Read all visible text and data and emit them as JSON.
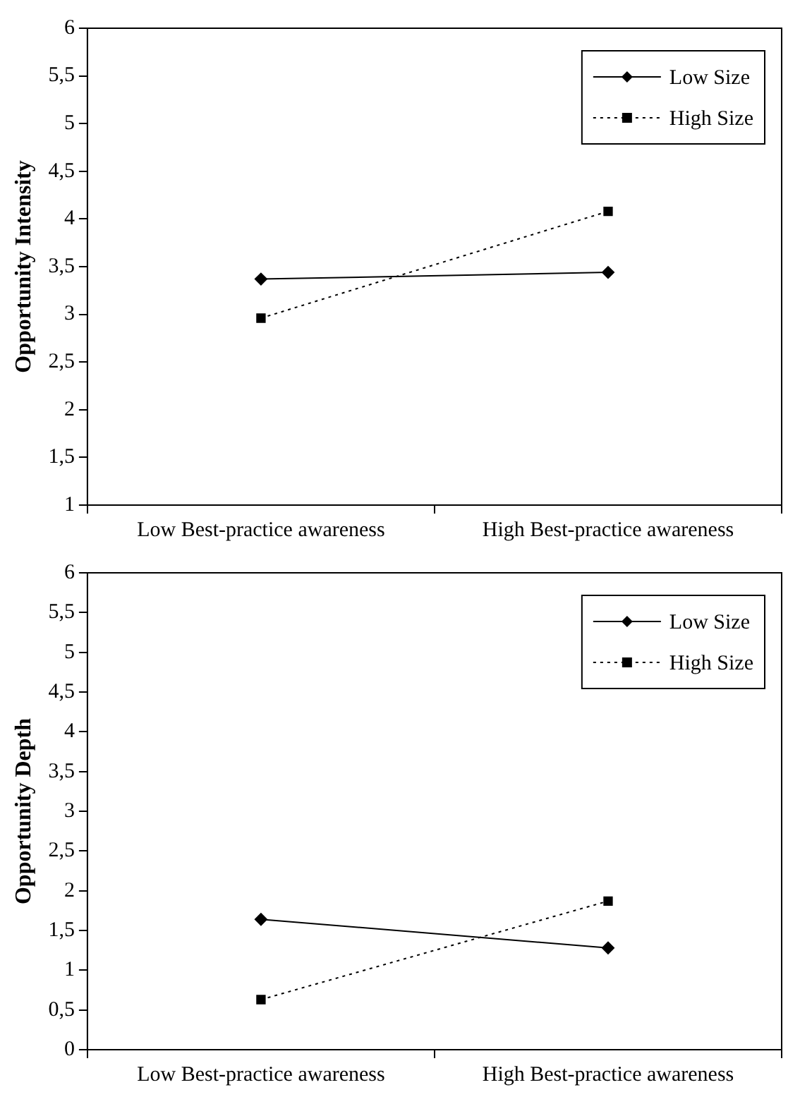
{
  "chart_data": [
    {
      "type": "line",
      "ylabel": "Opportunity Intensity",
      "categories": [
        "Low Best-practice awareness",
        "High Best-practice awareness"
      ],
      "series": [
        {
          "name": "Low Size",
          "color": "#000000",
          "values": [
            3.37,
            3.44
          ],
          "marker": "diamond",
          "line_style": "solid"
        },
        {
          "name": "High Size",
          "color": "#000000",
          "values": [
            2.96,
            4.08
          ],
          "marker": "square",
          "line_style": "dotted"
        }
      ],
      "ylim": [
        1,
        6
      ],
      "yticks": [
        1,
        {
          "value": 1.5,
          "label": "1,5"
        },
        2,
        {
          "value": 2.5,
          "label": "2,5"
        },
        3,
        {
          "value": 3.5,
          "label": "3,5"
        },
        4,
        {
          "value": 4.5,
          "label": "4,5"
        },
        5,
        {
          "value": 5.5,
          "label": "5,5"
        },
        6
      ],
      "grid": false,
      "legend": "top right"
    },
    {
      "type": "line",
      "ylabel": "Opportunity Depth",
      "categories": [
        "Low Best-practice awareness",
        "High Best-practice awareness"
      ],
      "series": [
        {
          "name": "Low Size",
          "color": "#000000",
          "values": [
            1.64,
            1.28
          ],
          "marker": "diamond",
          "line_style": "solid"
        },
        {
          "name": "High Size",
          "color": "#000000",
          "values": [
            0.63,
            1.87
          ],
          "marker": "square",
          "line_style": "dotted"
        }
      ],
      "ylim": [
        0,
        6
      ],
      "yticks": [
        0,
        {
          "value": 0.5,
          "label": "0,5"
        },
        1,
        {
          "value": 1.5,
          "label": "1,5"
        },
        2,
        {
          "value": 2.5,
          "label": "2,5"
        },
        3,
        {
          "value": 3.5,
          "label": "3,5"
        },
        4,
        {
          "value": 4.5,
          "label": "4,5"
        },
        5,
        {
          "value": 5.5,
          "label": "5,5"
        },
        6
      ],
      "grid": false,
      "legend": "top right"
    }
  ]
}
